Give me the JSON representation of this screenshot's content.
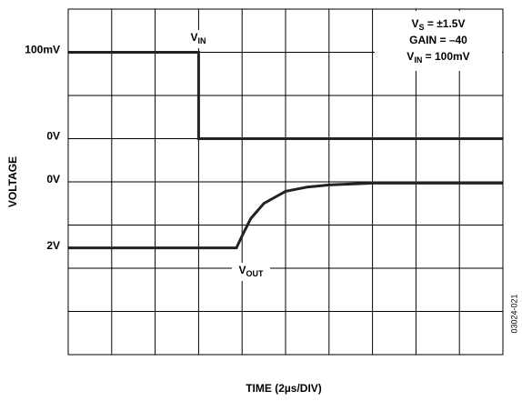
{
  "chart_data": {
    "type": "line",
    "x_label": "TIME (2µs/DIV)",
    "y_label": "VOLTAGE",
    "side_note": "03024-021",
    "xlim": [
      0,
      10
    ],
    "ylim": [
      0,
      8
    ],
    "xgrid": [
      0,
      1,
      2,
      3,
      4,
      5,
      6,
      7,
      8,
      9,
      10
    ],
    "ygrid": [
      0,
      1,
      2,
      3,
      4,
      5,
      6,
      7,
      8
    ],
    "yticks": [
      {
        "value": 7,
        "label": "100mV"
      },
      {
        "value": 5,
        "label": "0V"
      },
      {
        "value": 4,
        "label": "0V"
      },
      {
        "value": 2.47,
        "label": "2V"
      }
    ],
    "series": [
      {
        "label": {
          "main": "V",
          "sub": "IN"
        },
        "color": "#222222",
        "x": [
          0,
          3,
          3,
          10
        ],
        "values": [
          7,
          7,
          5,
          5
        ]
      },
      {
        "label": {
          "main": "V",
          "sub": "OUT"
        },
        "color": "#222222",
        "x": [
          0,
          3.87,
          4.0,
          4.2,
          4.5,
          5.0,
          5.5,
          6.0,
          7.0,
          10
        ],
        "values": [
          2.47,
          2.47,
          2.75,
          3.15,
          3.5,
          3.78,
          3.88,
          3.93,
          3.97,
          3.97
        ]
      }
    ],
    "annotations": [
      [
        {
          "text": "V"
        },
        {
          "text": "S",
          "sub": true
        },
        {
          "text": " = ±1.5V"
        }
      ],
      [
        {
          "text": "GAIN = –40"
        }
      ],
      [
        {
          "text": "V"
        },
        {
          "text": "IN",
          "sub": true
        },
        {
          "text": " = 100mV"
        }
      ]
    ]
  }
}
